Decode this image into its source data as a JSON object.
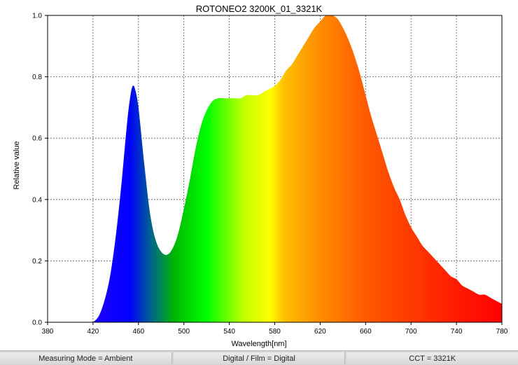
{
  "chart_data": {
    "type": "area",
    "title": "ROTONEO2 3200K_01_3321K",
    "xlabel": "Wavelength[nm]",
    "ylabel": "Relative value",
    "xlim": [
      380,
      780
    ],
    "ylim": [
      0,
      1.0
    ],
    "xticks": [
      "380",
      "420",
      "460",
      "500",
      "540",
      "580",
      "620",
      "660",
      "700",
      "740",
      "780"
    ],
    "yticks": [
      "0.0",
      "0.2",
      "0.4",
      "0.6",
      "0.8",
      "1.0"
    ],
    "grid": true,
    "fill": "visible-spectrum gradient",
    "x": [
      420,
      425,
      430,
      435,
      440,
      445,
      450,
      453,
      455,
      457,
      460,
      465,
      470,
      475,
      480,
      485,
      490,
      495,
      500,
      505,
      510,
      515,
      520,
      525,
      530,
      535,
      540,
      545,
      550,
      555,
      560,
      565,
      570,
      575,
      580,
      585,
      590,
      595,
      600,
      605,
      610,
      615,
      620,
      625,
      630,
      635,
      640,
      645,
      650,
      655,
      660,
      665,
      670,
      675,
      680,
      685,
      690,
      695,
      700,
      705,
      710,
      715,
      720,
      725,
      730,
      735,
      740,
      745,
      750,
      755,
      760,
      765,
      770,
      775,
      780
    ],
    "y": [
      0.0,
      0.02,
      0.07,
      0.15,
      0.28,
      0.45,
      0.65,
      0.74,
      0.77,
      0.76,
      0.7,
      0.52,
      0.36,
      0.27,
      0.23,
      0.22,
      0.24,
      0.29,
      0.37,
      0.46,
      0.56,
      0.64,
      0.69,
      0.72,
      0.73,
      0.73,
      0.73,
      0.73,
      0.73,
      0.74,
      0.74,
      0.74,
      0.75,
      0.76,
      0.77,
      0.79,
      0.82,
      0.84,
      0.87,
      0.9,
      0.93,
      0.96,
      0.98,
      1.0,
      1.0,
      0.99,
      0.96,
      0.92,
      0.87,
      0.81,
      0.74,
      0.67,
      0.61,
      0.55,
      0.49,
      0.44,
      0.4,
      0.35,
      0.31,
      0.28,
      0.25,
      0.23,
      0.21,
      0.19,
      0.17,
      0.15,
      0.14,
      0.12,
      0.11,
      0.1,
      0.09,
      0.09,
      0.08,
      0.07,
      0.06
    ]
  },
  "status_bar": {
    "measuring_mode": "Measuring Mode = Ambient",
    "digital_film": "Digital / Film = Digital",
    "cct": "CCT = 3321K"
  }
}
